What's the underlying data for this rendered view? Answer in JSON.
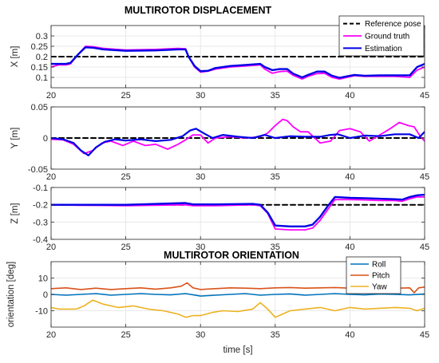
{
  "chart_data": [
    {
      "type": "line",
      "title": "MULTIROTOR DISPLACEMENT",
      "ylabel": "X [m]",
      "xlim": [
        20,
        45
      ],
      "ylim": [
        0.05,
        0.35
      ],
      "xticks": [
        "20",
        "25",
        "30",
        "35",
        "40",
        "45"
      ],
      "yticks": [
        "0.1",
        "0.15",
        "0.2",
        "0.25",
        "0.3"
      ],
      "ytick_values": [
        0.1,
        0.15,
        0.2,
        0.25,
        0.3
      ],
      "grid": true,
      "legend": "top-right",
      "series": [
        {
          "name": "Reference pose",
          "color": "#000000",
          "dashed": true,
          "width": 2,
          "x": [
            20,
            45
          ],
          "y": [
            0.2,
            0.2
          ]
        },
        {
          "name": "Ground truth",
          "color": "#ff00ff",
          "width": 1.8,
          "x": [
            20,
            20.5,
            21,
            21.3,
            21.8,
            22.3,
            22.8,
            23.5,
            25,
            27,
            28.5,
            29,
            29.2,
            29.6,
            30,
            30.5,
            31,
            32,
            33,
            34,
            34.3,
            34.8,
            35.3,
            35.8,
            36.2,
            36.8,
            37.2,
            37.8,
            38.3,
            38.8,
            39.3,
            39.8,
            40.3,
            41,
            42,
            43,
            44,
            44.5,
            45
          ],
          "y": [
            0.15,
            0.16,
            0.16,
            0.165,
            0.21,
            0.25,
            0.248,
            0.24,
            0.232,
            0.235,
            0.24,
            0.238,
            0.2,
            0.15,
            0.125,
            0.13,
            0.14,
            0.15,
            0.155,
            0.16,
            0.14,
            0.12,
            0.128,
            0.13,
            0.11,
            0.092,
            0.105,
            0.118,
            0.12,
            0.1,
            0.092,
            0.1,
            0.108,
            0.105,
            0.105,
            0.105,
            0.1,
            0.135,
            0.15
          ]
        },
        {
          "name": "Estimation",
          "color": "#0000e6",
          "width": 2.4,
          "x": [
            20,
            20.5,
            21,
            21.3,
            21.8,
            22.3,
            22.8,
            23.5,
            25,
            27,
            28.5,
            29,
            29.2,
            29.6,
            30,
            30.5,
            31,
            32,
            33,
            34,
            34.3,
            34.8,
            35.3,
            35.8,
            36.2,
            36.8,
            37.2,
            37.8,
            38.3,
            38.8,
            39.3,
            39.8,
            40.3,
            41,
            42,
            43,
            44,
            44.5,
            45
          ],
          "y": [
            0.165,
            0.165,
            0.165,
            0.17,
            0.21,
            0.245,
            0.243,
            0.235,
            0.228,
            0.23,
            0.235,
            0.235,
            0.2,
            0.155,
            0.13,
            0.132,
            0.145,
            0.155,
            0.16,
            0.165,
            0.15,
            0.135,
            0.14,
            0.14,
            0.118,
            0.1,
            0.112,
            0.128,
            0.128,
            0.108,
            0.098,
            0.105,
            0.112,
            0.108,
            0.11,
            0.11,
            0.11,
            0.15,
            0.165
          ]
        }
      ]
    },
    {
      "type": "line",
      "title": "",
      "ylabel": "Y [m]",
      "xlim": [
        20,
        45
      ],
      "ylim": [
        -0.05,
        0.05
      ],
      "xticks": [
        "20",
        "25",
        "30",
        "35",
        "40",
        "45"
      ],
      "yticks": [
        "-0.05",
        "0",
        "0.05"
      ],
      "ytick_values": [
        -0.05,
        0,
        0.05
      ],
      "grid": true,
      "series": [
        {
          "name": "Reference pose",
          "color": "#000000",
          "dashed": true,
          "width": 2,
          "x": [
            20,
            45
          ],
          "y": [
            0,
            0
          ]
        },
        {
          "name": "Ground truth",
          "color": "#ff00ff",
          "width": 1.8,
          "x": [
            20,
            20.8,
            21.5,
            22.2,
            22.8,
            23.4,
            24,
            24.8,
            25.5,
            26.3,
            27,
            27.8,
            28.5,
            29,
            29.5,
            30,
            30.5,
            31,
            32,
            33,
            34,
            34.5,
            35,
            35.5,
            35.8,
            36.2,
            36.7,
            37.2,
            38,
            38.7,
            39.3,
            40,
            40.7,
            41.3,
            42,
            42.7,
            43.3,
            43.9,
            44.3,
            44.7,
            45
          ],
          "y": [
            -0.002,
            -0.003,
            -0.01,
            -0.025,
            -0.02,
            -0.008,
            -0.005,
            -0.012,
            -0.005,
            -0.012,
            -0.01,
            -0.018,
            -0.01,
            -0.003,
            0.005,
            0.005,
            -0.008,
            0.0,
            0.002,
            0.0,
            0.002,
            0.008,
            0.02,
            0.03,
            0.028,
            0.018,
            0.01,
            0.01,
            -0.008,
            -0.005,
            0.012,
            0.015,
            0.01,
            -0.005,
            0.005,
            0.015,
            0.025,
            0.02,
            0.018,
            0.003,
            -0.005
          ]
        },
        {
          "name": "Estimation",
          "color": "#0000e6",
          "width": 2.2,
          "x": [
            20,
            20.8,
            21.5,
            22,
            22.5,
            23,
            23.6,
            24.3,
            25,
            26,
            27,
            28,
            28.8,
            29.3,
            29.7,
            30.2,
            30.8,
            31.5,
            32.5,
            33.5,
            34.3,
            35,
            36,
            37,
            38,
            38.7,
            39.2,
            40,
            41,
            42,
            43,
            44,
            44.6,
            45
          ],
          "y": [
            0.0,
            -0.002,
            -0.008,
            -0.02,
            -0.028,
            -0.015,
            -0.006,
            -0.002,
            -0.004,
            -0.002,
            -0.005,
            -0.003,
            0.003,
            0.012,
            0.015,
            0.008,
            0.0,
            0.005,
            0.002,
            0.0,
            0.005,
            0.0,
            0.003,
            0.002,
            0.002,
            0.005,
            0.006,
            0.0,
            0.004,
            0.003,
            0.006,
            0.006,
            0.0,
            0.01
          ]
        }
      ]
    },
    {
      "type": "line",
      "title": "",
      "ylabel": "Z [m]",
      "xlim": [
        20,
        45
      ],
      "ylim": [
        -0.4,
        -0.1
      ],
      "xticks": [
        "20",
        "25",
        "30",
        "35",
        "40",
        "45"
      ],
      "yticks": [
        "-0.4",
        "-0.3",
        "-0.2",
        "-0.1"
      ],
      "ytick_values": [
        -0.4,
        -0.3,
        -0.2,
        -0.1
      ],
      "grid": true,
      "series": [
        {
          "name": "Reference pose",
          "color": "#000000",
          "dashed": true,
          "width": 2,
          "x": [
            20,
            45
          ],
          "y": [
            -0.2,
            -0.2
          ]
        },
        {
          "name": "Ground truth",
          "color": "#ff00ff",
          "width": 1.8,
          "x": [
            20,
            22,
            25,
            29,
            29.5,
            31,
            33.5,
            34,
            34.5,
            35,
            36,
            37,
            37.5,
            38,
            38.5,
            39,
            40,
            41,
            42,
            43,
            43.5,
            44,
            44.5,
            45
          ],
          "y": [
            -0.2,
            -0.203,
            -0.205,
            -0.2,
            -0.205,
            -0.205,
            -0.2,
            -0.205,
            -0.25,
            -0.34,
            -0.345,
            -0.345,
            -0.335,
            -0.29,
            -0.23,
            -0.17,
            -0.17,
            -0.172,
            -0.175,
            -0.175,
            -0.18,
            -0.165,
            -0.155,
            -0.155
          ]
        },
        {
          "name": "Estimation",
          "color": "#0000e6",
          "width": 2.4,
          "x": [
            20,
            22,
            25,
            29,
            29.5,
            31,
            33.5,
            34,
            34.5,
            35,
            36,
            37,
            37.5,
            38,
            38.5,
            39,
            40,
            41,
            42,
            43,
            43.5,
            44,
            44.5,
            45
          ],
          "y": [
            -0.2,
            -0.2,
            -0.2,
            -0.19,
            -0.198,
            -0.198,
            -0.195,
            -0.2,
            -0.245,
            -0.32,
            -0.325,
            -0.325,
            -0.315,
            -0.27,
            -0.21,
            -0.155,
            -0.16,
            -0.162,
            -0.165,
            -0.168,
            -0.17,
            -0.155,
            -0.145,
            -0.142
          ]
        }
      ]
    },
    {
      "type": "line",
      "title": "MULTIROTOR ORIENTATION",
      "ylabel": "orientation [deg]",
      "xlabel": "time [s]",
      "xlim": [
        20,
        45
      ],
      "ylim": [
        -20,
        20
      ],
      "xticks": [
        "20",
        "25",
        "30",
        "35",
        "40",
        "45"
      ],
      "yticks": [
        "-10",
        "0",
        "10"
      ],
      "ytick_values": [
        -10,
        0,
        10
      ],
      "grid": true,
      "legend": "top-right",
      "series": [
        {
          "name": "Roll",
          "color": "#0072bd",
          "width": 1.6,
          "x": [
            20,
            21,
            22,
            23,
            24,
            25,
            26,
            27,
            28,
            29,
            30,
            31,
            32,
            33,
            34,
            35,
            36,
            37,
            38,
            39,
            40,
            41,
            42,
            43,
            44,
            45
          ],
          "y": [
            0,
            -0.5,
            0,
            0.5,
            -0.5,
            0,
            0.5,
            0,
            -0.3,
            0.5,
            -1,
            -0.5,
            0,
            0.5,
            -0.5,
            0,
            0.3,
            -0.5,
            0,
            0.5,
            0,
            -0.3,
            0.2,
            0,
            -0.3,
            0.2
          ]
        },
        {
          "name": "Pitch",
          "color": "#d95319",
          "width": 1.6,
          "x": [
            20,
            21,
            22,
            23,
            24,
            25,
            26,
            27,
            28,
            28.7,
            29.1,
            29.5,
            30,
            31,
            32,
            33,
            34,
            35,
            36,
            37,
            38,
            39,
            40,
            41,
            42,
            43,
            44,
            44.3,
            44.6,
            45
          ],
          "y": [
            3.5,
            4,
            3,
            3.8,
            3,
            3.5,
            4,
            3.2,
            4,
            5,
            7,
            4,
            3,
            3.5,
            4,
            3.8,
            3.5,
            4,
            4.2,
            3.8,
            4,
            4.2,
            3.8,
            4,
            4.3,
            3.8,
            4,
            1,
            4,
            4.5
          ]
        },
        {
          "name": "Yaw",
          "color": "#edb120",
          "width": 1.6,
          "x": [
            20,
            20.5,
            21,
            21.7,
            22.2,
            22.8,
            23.5,
            24.5,
            25.5,
            26.5,
            27.5,
            28.5,
            29,
            29.5,
            30,
            30.8,
            31.5,
            32.5,
            33.5,
            34,
            34.5,
            35,
            35.5,
            36,
            37,
            38,
            39,
            40,
            41,
            42,
            43,
            44,
            44.5,
            45
          ],
          "y": [
            -8,
            -9,
            -9,
            -9,
            -7,
            -3.5,
            -6,
            -8,
            -7,
            -9,
            -10,
            -12,
            -14,
            -13,
            -13,
            -11,
            -10,
            -10.5,
            -9,
            -5,
            -9,
            -14,
            -12,
            -10,
            -9,
            -8,
            -10,
            -8,
            -9,
            -8.5,
            -8,
            -8.5,
            -10,
            -8.5
          ]
        }
      ]
    }
  ]
}
